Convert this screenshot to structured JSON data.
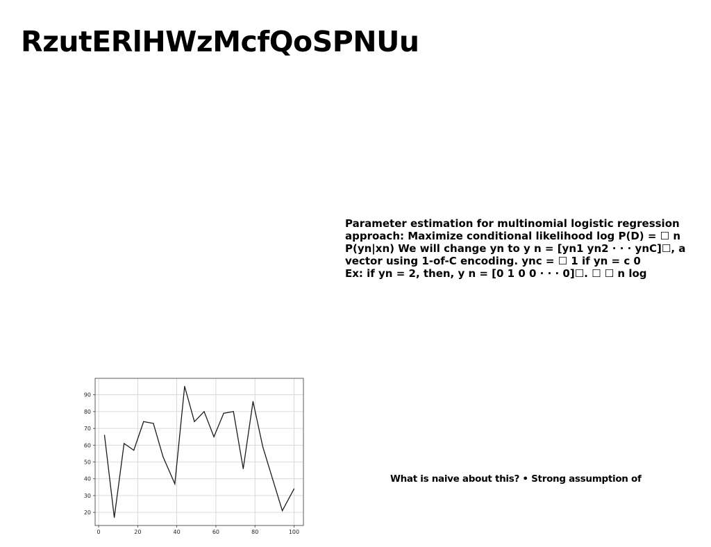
{
  "slide": {
    "title": "RzutERlHWzMcfQoSPNUu",
    "body_lines": [
      "Parameter estimation for multinomial logistic regression",
      "approach: Maximize conditional likelihood log P(D) = ☐ n",
      "P(yn|xn) We will change yn to y n = [yn1 yn2 · · · ynC]☐, a",
      "vector using 1-of-C encoding. ync = ☐ 1 if yn = c 0",
      "Ex: if yn = 2, then, y n = [0 1 0 0 · · · 0]☐. ☐ ☐ n log"
    ],
    "footnote": "What is naive about this? • Strong assumption of"
  },
  "chart_data": {
    "type": "line",
    "title": "",
    "xlabel": "",
    "ylabel": "",
    "x": [
      3,
      8,
      13,
      18,
      23,
      28,
      33,
      39,
      44,
      49,
      54,
      59,
      64,
      69,
      74,
      79,
      84,
      89,
      94,
      100
    ],
    "values": [
      66,
      17,
      61,
      57,
      74,
      73,
      53,
      37,
      95,
      74,
      80,
      65,
      79,
      80,
      46,
      86,
      59,
      40,
      21,
      34
    ],
    "xlim": [
      -1.8,
      104.8
    ],
    "ylim": [
      12.2,
      99.8
    ],
    "xticks": [
      0,
      20,
      40,
      60,
      80,
      100
    ],
    "yticks": [
      20,
      30,
      40,
      50,
      60,
      70,
      80,
      90
    ],
    "grid": true,
    "line_color": "#1a1a1a",
    "grid_color": "#d0d0d0",
    "axis_color": "#333333"
  }
}
